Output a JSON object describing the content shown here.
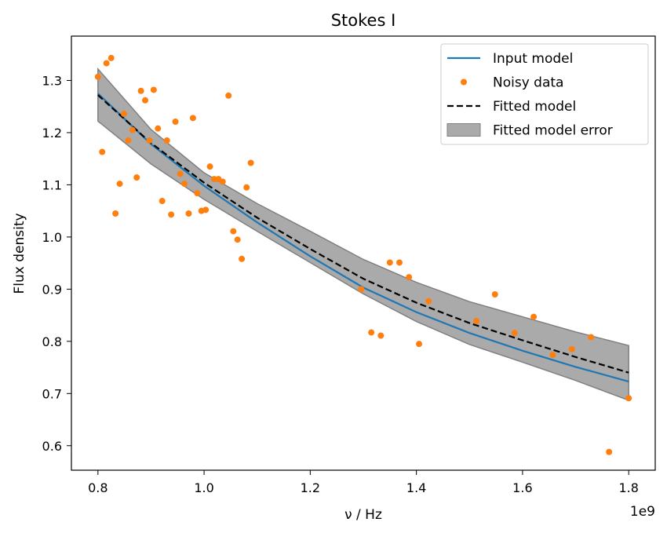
{
  "chart_data": {
    "type": "line",
    "title": "Stokes I",
    "xlabel": "ν / Hz",
    "ylabel": "Flux density",
    "x_offset_label": "1e9",
    "xlim": [
      750000000,
      1850000000
    ],
    "ylim": [
      0.553,
      1.385
    ],
    "xticks": [
      {
        "value": 800000000,
        "label": "0.8"
      },
      {
        "value": 1000000000,
        "label": "1.0"
      },
      {
        "value": 1200000000,
        "label": "1.2"
      },
      {
        "value": 1400000000,
        "label": "1.4"
      },
      {
        "value": 1600000000,
        "label": "1.6"
      },
      {
        "value": 1800000000,
        "label": "1.8"
      }
    ],
    "yticks": [
      {
        "value": 0.6,
        "label": "0.6"
      },
      {
        "value": 0.7,
        "label": "0.7"
      },
      {
        "value": 0.8,
        "label": "0.8"
      },
      {
        "value": 0.9,
        "label": "0.9"
      },
      {
        "value": 1.0,
        "label": "1.0"
      },
      {
        "value": 1.1,
        "label": "1.1"
      },
      {
        "value": 1.2,
        "label": "1.2"
      },
      {
        "value": 1.3,
        "label": "1.3"
      }
    ],
    "grid": false,
    "legend_position": "upper right",
    "series": [
      {
        "name": "Input model",
        "kind": "line",
        "color": "#1f77b4",
        "points": [
          [
            800000000,
            1.275
          ],
          [
            900000000,
            1.178
          ],
          [
            1000000000,
            1.098
          ],
          [
            1100000000,
            1.028
          ],
          [
            1200000000,
            0.963
          ],
          [
            1300000000,
            0.903
          ],
          [
            1400000000,
            0.856
          ],
          [
            1500000000,
            0.816
          ],
          [
            1600000000,
            0.782
          ],
          [
            1700000000,
            0.751
          ],
          [
            1800000000,
            0.723
          ]
        ]
      },
      {
        "name": "Noisy data",
        "kind": "scatter",
        "color": "#ff7f0e",
        "points": [
          [
            800000000,
            1.307
          ],
          [
            808000000,
            1.163
          ],
          [
            816000000,
            1.333
          ],
          [
            825000000,
            1.343
          ],
          [
            833000000,
            1.045
          ],
          [
            841000000,
            1.102
          ],
          [
            849000000,
            1.236
          ],
          [
            857000000,
            1.185
          ],
          [
            865000000,
            1.205
          ],
          [
            873000000,
            1.114
          ],
          [
            881000000,
            1.28
          ],
          [
            889000000,
            1.262
          ],
          [
            897000000,
            1.185
          ],
          [
            905000000,
            1.282
          ],
          [
            913000000,
            1.208
          ],
          [
            921000000,
            1.069
          ],
          [
            930000000,
            1.185
          ],
          [
            938000000,
            1.043
          ],
          [
            946000000,
            1.221
          ],
          [
            955000000,
            1.121
          ],
          [
            963000000,
            1.102
          ],
          [
            971000000,
            1.045
          ],
          [
            979000000,
            1.228
          ],
          [
            987000000,
            1.084
          ],
          [
            995000000,
            1.05
          ],
          [
            1003000000,
            1.052
          ],
          [
            1011000000,
            1.135
          ],
          [
            1019000000,
            1.111
          ],
          [
            1027000000,
            1.111
          ],
          [
            1035000000,
            1.106
          ],
          [
            1046000000,
            1.271
          ],
          [
            1055000000,
            1.011
          ],
          [
            1063000000,
            0.995
          ],
          [
            1071000000,
            0.958
          ],
          [
            1080000000,
            1.095
          ],
          [
            1088000000,
            1.142
          ],
          [
            1296000000,
            0.9
          ],
          [
            1315000000,
            0.817
          ],
          [
            1333000000,
            0.811
          ],
          [
            1350000000,
            0.951
          ],
          [
            1368000000,
            0.951
          ],
          [
            1386000000,
            0.923
          ],
          [
            1405000000,
            0.795
          ],
          [
            1423000000,
            0.877
          ],
          [
            1513000000,
            0.839
          ],
          [
            1548000000,
            0.89
          ],
          [
            1585000000,
            0.816
          ],
          [
            1621000000,
            0.847
          ],
          [
            1657000000,
            0.774
          ],
          [
            1693000000,
            0.785
          ],
          [
            1729000000,
            0.808
          ],
          [
            1763000000,
            0.588
          ],
          [
            1800000000,
            0.691
          ]
        ]
      },
      {
        "name": "Fitted model",
        "kind": "dashed-line",
        "color": "#000000",
        "points": [
          [
            800000000,
            1.272
          ],
          [
            900000000,
            1.18
          ],
          [
            1000000000,
            1.104
          ],
          [
            1100000000,
            1.037
          ],
          [
            1200000000,
            0.977
          ],
          [
            1300000000,
            0.92
          ],
          [
            1400000000,
            0.874
          ],
          [
            1500000000,
            0.835
          ],
          [
            1600000000,
            0.802
          ],
          [
            1700000000,
            0.77
          ],
          [
            1800000000,
            0.74
          ]
        ]
      },
      {
        "name": "Fitted model error",
        "kind": "band",
        "color": "#aaaaaa",
        "edge_color": "#808080",
        "x": [
          800000000,
          900000000,
          1000000000,
          1100000000,
          1200000000,
          1300000000,
          1400000000,
          1500000000,
          1600000000,
          1700000000,
          1800000000
        ],
        "upper": [
          1.322,
          1.206,
          1.123,
          1.064,
          1.011,
          0.957,
          0.913,
          0.876,
          0.847,
          0.818,
          0.792
        ],
        "lower": [
          1.222,
          1.14,
          1.072,
          1.011,
          0.951,
          0.891,
          0.838,
          0.794,
          0.76,
          0.725,
          0.687
        ]
      }
    ]
  }
}
